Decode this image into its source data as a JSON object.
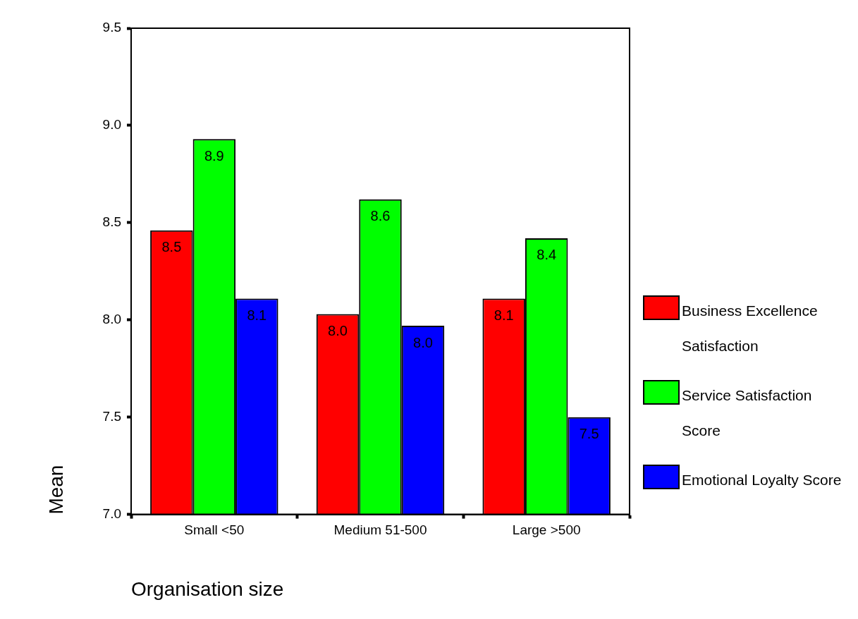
{
  "chart_data": {
    "type": "bar",
    "xlabel": "Organisation size",
    "ylabel": "Mean",
    "categories": [
      "Small <50",
      "Medium 51-500",
      "Large >500"
    ],
    "series": [
      {
        "name": "Business Excellence Satisfaction",
        "color": "#ff0000",
        "values": [
          8.46,
          8.03,
          8.11
        ],
        "value_labels": [
          "8.5",
          "8.0",
          "8.1"
        ]
      },
      {
        "name": "Service Satisfaction Score",
        "color": "#00ff00",
        "values": [
          8.93,
          8.62,
          8.42
        ],
        "value_labels": [
          "8.9",
          "8.6",
          "8.4"
        ]
      },
      {
        "name": "Emotional Loyalty Score",
        "color": "#0000ff",
        "values": [
          8.11,
          7.97,
          7.5
        ],
        "value_labels": [
          "8.1",
          "8.0",
          "7.5"
        ]
      }
    ],
    "ylim": [
      7.0,
      9.5
    ],
    "yticks": [
      {
        "value": 7.0,
        "label": "7.0"
      },
      {
        "value": 7.5,
        "label": "7.5"
      },
      {
        "value": 8.0,
        "label": "8.0"
      },
      {
        "value": 8.5,
        "label": "8.5"
      },
      {
        "value": 9.0,
        "label": "9.0"
      },
      {
        "value": 9.5,
        "label": "9.5"
      }
    ],
    "grid": false,
    "legend": "right"
  }
}
